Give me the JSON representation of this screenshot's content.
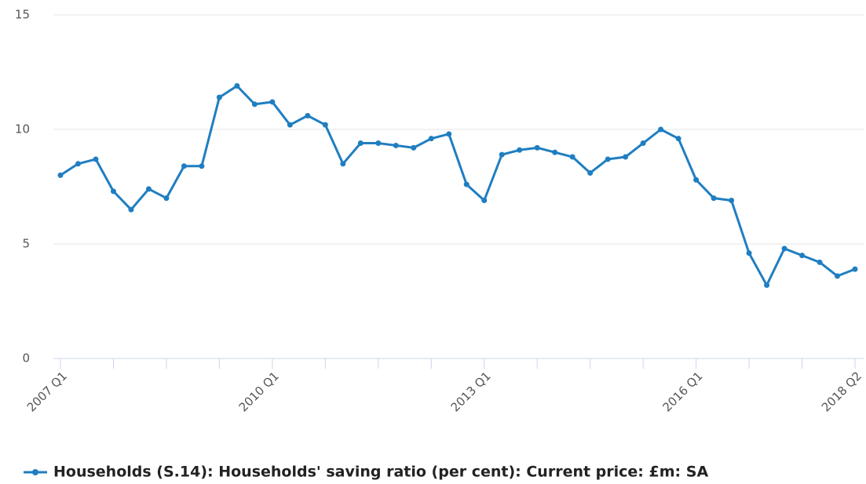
{
  "chart_data": {
    "type": "line",
    "categories": [
      "2007 Q1",
      null,
      null,
      null,
      null,
      null,
      null,
      null,
      null,
      null,
      null,
      null,
      "2010 Q1",
      null,
      null,
      null,
      null,
      null,
      null,
      null,
      null,
      null,
      null,
      null,
      "2013 Q1",
      null,
      null,
      null,
      null,
      null,
      null,
      null,
      null,
      null,
      null,
      null,
      "2016 Q1",
      null,
      null,
      null,
      null,
      null,
      null,
      null,
      null,
      "2018 Q2"
    ],
    "series": [
      {
        "name": "Households (S.14): Households' saving ratio (per cent): Current price: £m: SA",
        "color": "#1f7ec1",
        "values": [
          8.0,
          8.5,
          8.7,
          7.3,
          6.5,
          7.4,
          7.0,
          8.4,
          8.4,
          11.4,
          11.9,
          11.1,
          11.2,
          10.2,
          10.6,
          10.2,
          8.5,
          9.4,
          9.4,
          9.3,
          9.2,
          9.6,
          9.8,
          7.6,
          6.9,
          8.9,
          9.1,
          9.2,
          9.0,
          8.8,
          8.1,
          8.7,
          8.8,
          9.4,
          10.0,
          9.6,
          7.8,
          7.0,
          6.9,
          4.6,
          3.2,
          4.8,
          4.5,
          4.2,
          3.6,
          3.9
        ]
      }
    ],
    "ylim": [
      0,
      15
    ],
    "yticks": [
      0,
      5,
      10,
      15
    ],
    "grid": true,
    "legend": "bottom"
  }
}
